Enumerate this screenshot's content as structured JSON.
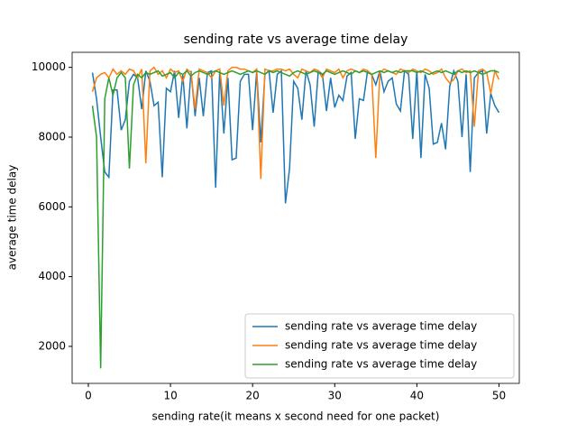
{
  "chart_data": {
    "type": "line",
    "title": "sending rate vs average time delay",
    "xlabel": "sending rate(it means x second need for one packet)",
    "ylabel": "average time delay",
    "x": [
      0.5,
      1,
      1.5,
      2,
      2.5,
      3,
      3.5,
      4,
      4.5,
      5,
      5.5,
      6,
      6.5,
      7,
      7.5,
      8,
      8.5,
      9,
      9.5,
      10,
      10.5,
      11,
      11.5,
      12,
      12.5,
      13,
      13.5,
      14,
      14.5,
      15,
      15.5,
      16,
      16.5,
      17,
      17.5,
      18,
      18.5,
      19,
      19.5,
      20,
      20.5,
      21,
      21.5,
      22,
      22.5,
      23,
      23.5,
      24,
      24.5,
      25,
      25.5,
      26,
      26.5,
      27,
      27.5,
      28,
      28.5,
      29,
      29.5,
      30,
      30.5,
      31,
      31.5,
      32,
      32.5,
      33,
      33.5,
      34,
      34.5,
      35,
      35.5,
      36,
      36.5,
      37,
      37.5,
      38,
      38.5,
      39,
      39.5,
      40,
      40.5,
      41,
      41.5,
      42,
      42.5,
      43,
      43.5,
      44,
      44.5,
      45,
      45.5,
      46,
      46.5,
      47,
      47.5,
      48,
      48.5,
      49,
      49.5,
      50
    ],
    "series": [
      {
        "name": "sending rate vs average time delay",
        "color": "#1f77b4",
        "values": [
          9850,
          9100,
          8000,
          7000,
          6850,
          9350,
          9350,
          8200,
          8500,
          9600,
          9800,
          9700,
          8800,
          9900,
          9600,
          8900,
          9000,
          6850,
          9400,
          9300,
          9900,
          8550,
          9800,
          8250,
          9900,
          8600,
          9700,
          8600,
          9850,
          9900,
          6550,
          9900,
          8100,
          9700,
          7350,
          7400,
          9600,
          9800,
          9800,
          8200,
          9900,
          7850,
          9800,
          9900,
          8700,
          9800,
          9900,
          6100,
          7100,
          9600,
          9400,
          8500,
          9900,
          9500,
          8300,
          9900,
          9800,
          8750,
          9700,
          8850,
          9200,
          9050,
          9750,
          9850,
          7950,
          9100,
          9050,
          9900,
          9800,
          9500,
          9900,
          9300,
          9600,
          9700,
          8950,
          8750,
          9900,
          9800,
          7950,
          9900,
          7400,
          9800,
          9400,
          7800,
          7850,
          8400,
          7650,
          9450,
          9900,
          9600,
          8000,
          9800,
          7000,
          9700,
          9850,
          9900,
          8100,
          9250,
          8900,
          8700
        ]
      },
      {
        "name": "sending rate vs average time delay",
        "color": "#ff7f0e",
        "values": [
          9300,
          9700,
          9800,
          9850,
          9700,
          9950,
          9800,
          9900,
          9800,
          9950,
          9900,
          9700,
          9950,
          7250,
          9900,
          10000,
          9800,
          9900,
          9700,
          9950,
          9850,
          9900,
          9600,
          9950,
          9850,
          8800,
          9950,
          9900,
          9850,
          9700,
          9900,
          9950,
          8900,
          9900,
          10000,
          10000,
          9950,
          9950,
          9900,
          9850,
          9950,
          6800,
          9950,
          9900,
          9900,
          9950,
          9950,
          9900,
          9950,
          9800,
          9700,
          9950,
          9900,
          9850,
          9950,
          9900,
          9700,
          9950,
          9900,
          9850,
          9950,
          9700,
          9900,
          9950,
          9900,
          9850,
          9950,
          9900,
          9800,
          7400,
          9850,
          9950,
          9900,
          9850,
          9800,
          9950,
          9900,
          9850,
          9950,
          9900,
          9850,
          9950,
          9900,
          9800,
          9850,
          9950,
          9700,
          9550,
          9650,
          9900,
          9950,
          9850,
          9900,
          8300,
          9900,
          9950,
          9850,
          9250,
          9900,
          9650
        ]
      },
      {
        "name": "sending rate vs average time delay",
        "color": "#2ca02c",
        "values": [
          8900,
          8000,
          1370,
          9100,
          9700,
          9200,
          9700,
          9850,
          9700,
          7100,
          9500,
          9800,
          9700,
          9850,
          9800,
          9850,
          9900,
          9750,
          9800,
          9850,
          9700,
          9850,
          9800,
          9900,
          9750,
          9850,
          9900,
          9850,
          9800,
          9850,
          9900,
          9850,
          9800,
          9850,
          9900,
          9850,
          9800,
          9850,
          9900,
          9850,
          9900,
          9850,
          9800,
          9900,
          9850,
          9900,
          9850,
          9800,
          9750,
          9850,
          9900,
          9850,
          9800,
          9850,
          9900,
          9850,
          9800,
          9900,
          9850,
          9800,
          9850,
          9900,
          9850,
          9800,
          9900,
          9850,
          9900,
          9850,
          9800,
          9850,
          9900,
          9850,
          9900,
          9850,
          9900,
          9850,
          9900,
          9900,
          9900,
          9850,
          9900,
          9850,
          9800,
          9850,
          9900,
          9850,
          9900,
          9850,
          9800,
          9900,
          9850,
          9900,
          9850,
          9900,
          9850,
          9800,
          9850,
          9900,
          9900,
          9850
        ]
      }
    ],
    "xlim": [
      -1.975,
      52.475
    ],
    "xticks": [
      0,
      10,
      20,
      30,
      40,
      50
    ],
    "ylim": [
      939,
      10431
    ],
    "yticks": [
      2000,
      4000,
      6000,
      8000,
      10000
    ],
    "legend": "lower right"
  }
}
